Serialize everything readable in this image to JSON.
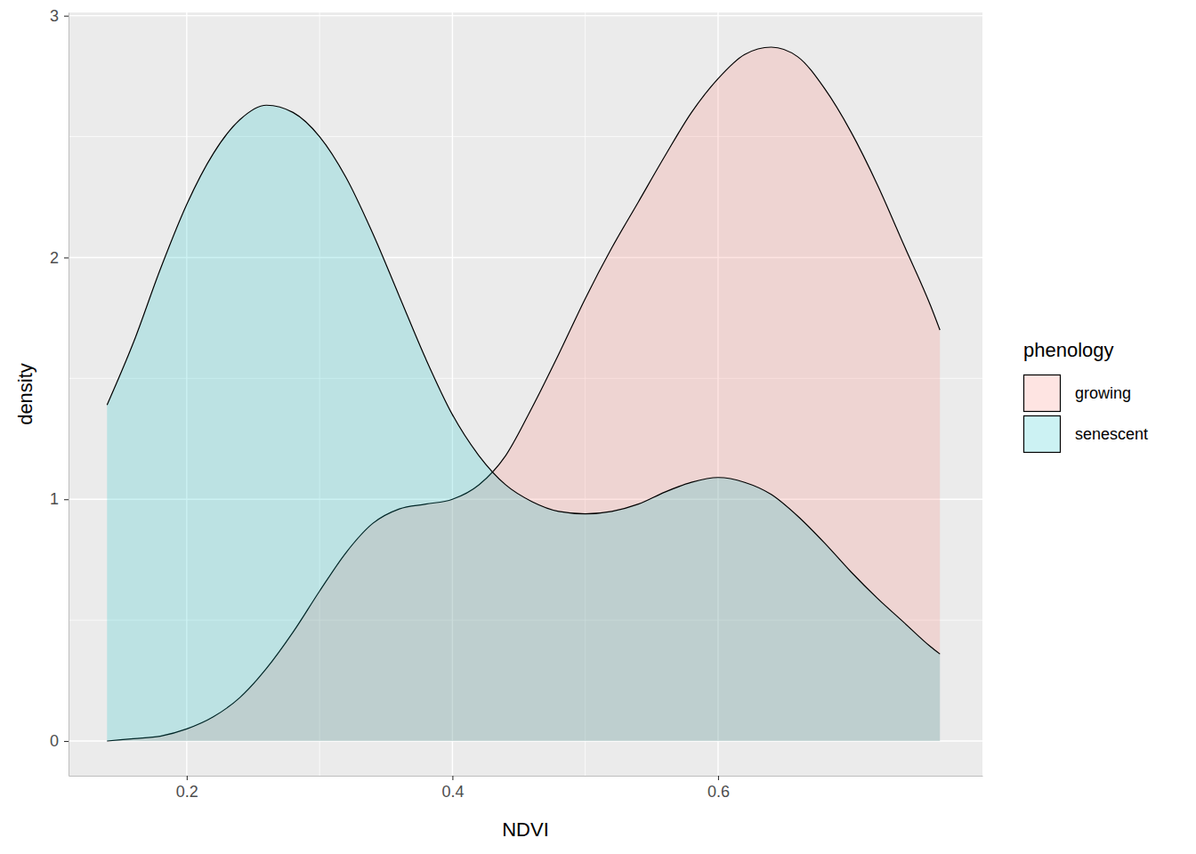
{
  "chart_data": {
    "type": "density",
    "x_label": "NDVI",
    "y_label": "density",
    "x": [
      0.14,
      0.16,
      0.18,
      0.2,
      0.22,
      0.24,
      0.26,
      0.28,
      0.3,
      0.32,
      0.34,
      0.36,
      0.38,
      0.4,
      0.42,
      0.44,
      0.46,
      0.48,
      0.5,
      0.52,
      0.54,
      0.56,
      0.58,
      0.6,
      0.62,
      0.64,
      0.66,
      0.68,
      0.7,
      0.72,
      0.74,
      0.76,
      0.767
    ],
    "series": [
      {
        "name": "growing",
        "color": "#F8766D",
        "values": [
          0.0,
          0.01,
          0.02,
          0.05,
          0.1,
          0.18,
          0.3,
          0.45,
          0.62,
          0.78,
          0.9,
          0.96,
          0.98,
          1.0,
          1.06,
          1.18,
          1.38,
          1.6,
          1.83,
          2.04,
          2.23,
          2.42,
          2.6,
          2.74,
          2.84,
          2.87,
          2.83,
          2.7,
          2.52,
          2.3,
          2.05,
          1.8,
          1.7
        ]
      },
      {
        "name": "senescent",
        "color": "#00BFC4",
        "values": [
          1.39,
          1.65,
          1.95,
          2.22,
          2.43,
          2.57,
          2.63,
          2.6,
          2.5,
          2.33,
          2.1,
          1.84,
          1.58,
          1.35,
          1.18,
          1.06,
          0.99,
          0.95,
          0.94,
          0.95,
          0.98,
          1.03,
          1.07,
          1.09,
          1.07,
          1.02,
          0.93,
          0.82,
          0.7,
          0.59,
          0.49,
          0.39,
          0.36
        ]
      }
    ],
    "xlim": [
      0.111,
      0.799
    ],
    "ylim": [
      -0.1435,
      3.0135
    ],
    "xticks": [
      0.2,
      0.4,
      0.6
    ],
    "yticks": [
      0,
      1,
      2,
      3
    ],
    "grid": true,
    "legend": "right",
    "legend_title": "phenology"
  }
}
